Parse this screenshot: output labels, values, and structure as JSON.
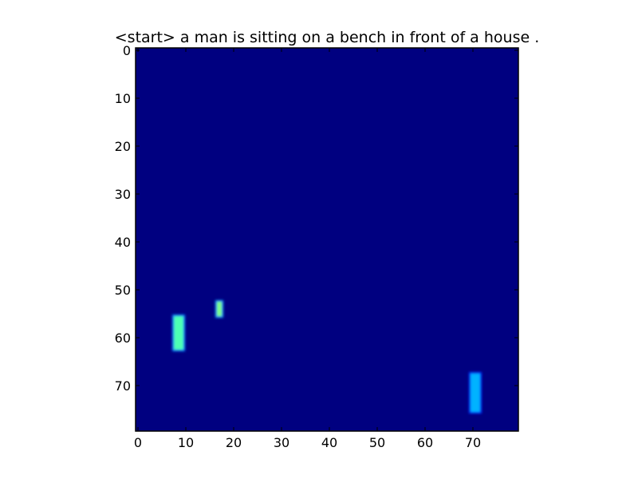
{
  "chart_data": {
    "type": "heatmap",
    "title": "<start> a man is sitting on a bench in front of a house .",
    "xlabel": "",
    "ylabel": "",
    "grid": false,
    "colormap": "jet",
    "background_value": 0.0,
    "xlim": [
      -0.5,
      79.5
    ],
    "ylim": [
      79.5,
      -0.5
    ],
    "x_ticks": [
      0,
      10,
      20,
      30,
      40,
      50,
      60,
      70
    ],
    "y_ticks": [
      0,
      10,
      20,
      30,
      40,
      50,
      60,
      70
    ],
    "hotspots": [
      {
        "label": "vertical blob left",
        "x": [
          8,
          9
        ],
        "y": [
          56,
          62
        ],
        "value": 0.45
      },
      {
        "label": "small dots",
        "x": [
          17,
          17
        ],
        "y": [
          53,
          55
        ],
        "value": 0.5
      },
      {
        "label": "vertical blob right",
        "x": [
          70,
          71
        ],
        "y": [
          68,
          75
        ],
        "value": 0.3
      }
    ]
  }
}
